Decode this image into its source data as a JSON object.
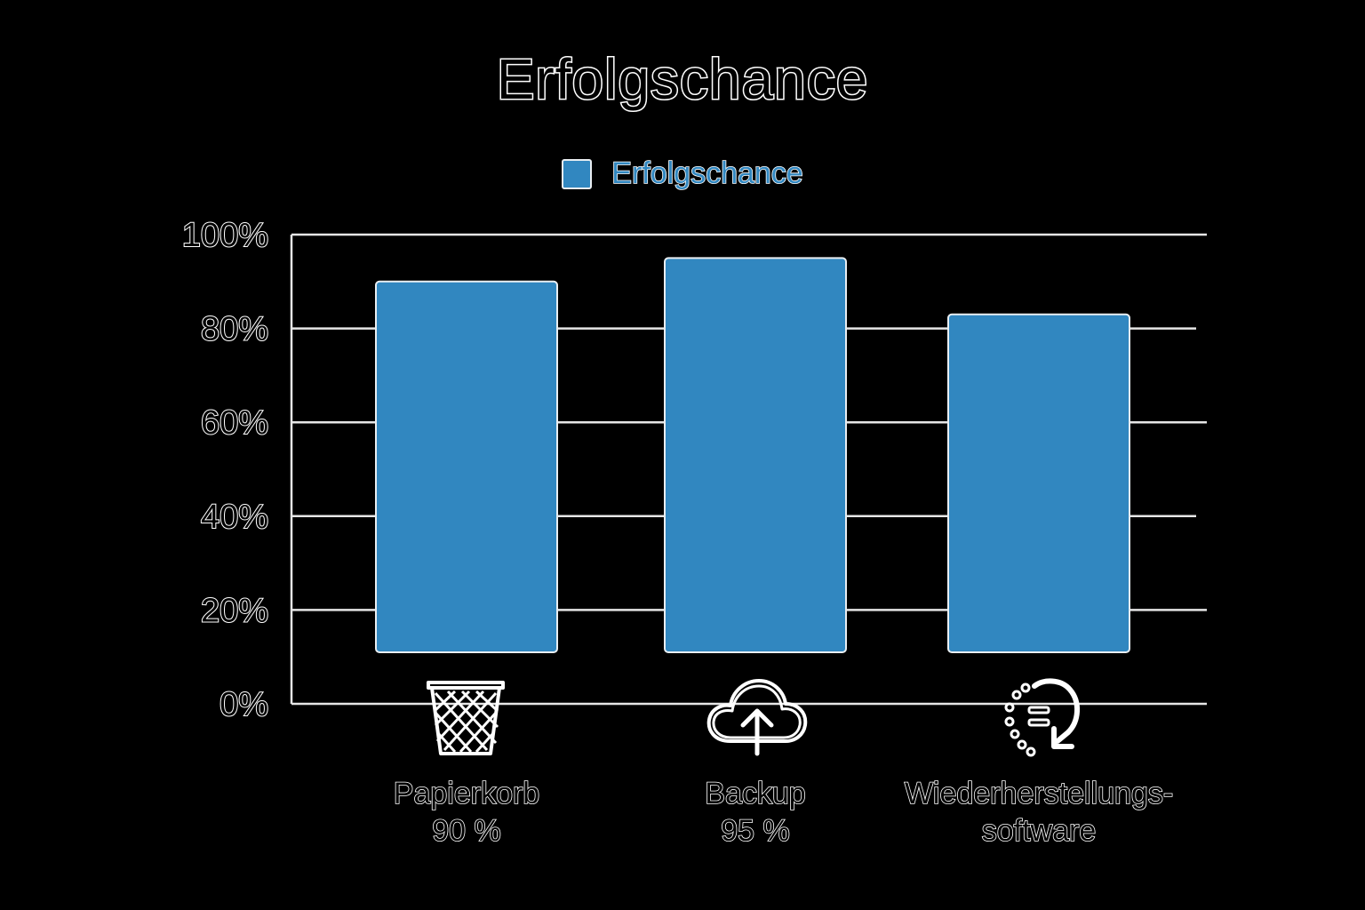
{
  "chart_data": {
    "type": "bar",
    "title": "Erfolgschance",
    "legend": {
      "entries": [
        "Erfolgschance"
      ],
      "position": "top-center"
    },
    "categories": [
      "Papierkorb",
      "Backup",
      "Wiederherstellungs-\nsoftware"
    ],
    "category_sublabels": [
      "90 %",
      "95 %",
      ""
    ],
    "series": [
      {
        "name": "Erfolgschance",
        "values": [
          90,
          95,
          83
        ],
        "color": "#3187c0"
      }
    ],
    "yticks": [
      "0%",
      "20%",
      "40%",
      "60%",
      "80%",
      "100%"
    ],
    "ylim": [
      0,
      100
    ],
    "grid": true,
    "icons": [
      "trash-basket-icon",
      "cloud-upload-icon",
      "restore-arrow-icon"
    ]
  }
}
